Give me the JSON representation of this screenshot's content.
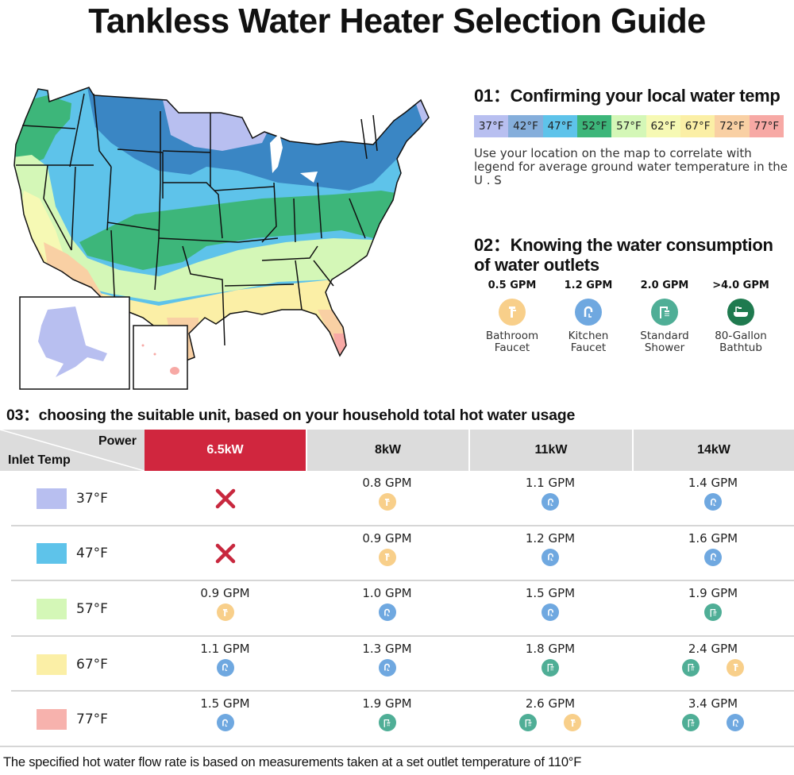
{
  "title": "Tankless Water Heater Selection Guide",
  "colors": {
    "accent_red": "#d0263e",
    "header_gray": "#dcdcdc",
    "icon_bathroom": "#f8cf8a",
    "icon_kitchen": "#6fa8e0",
    "icon_shower": "#4fae96",
    "icon_bathtub": "#1f7a4f"
  },
  "section1": {
    "heading": "01：Confirming your local water temp",
    "legend": [
      {
        "label": "37°F",
        "color": "#b8bff0"
      },
      {
        "label": "42°F",
        "color": "#85aedb"
      },
      {
        "label": "47°F",
        "color": "#5ec3ea"
      },
      {
        "label": "52°F",
        "color": "#3db67a"
      },
      {
        "label": "57°F",
        "color": "#d4f7b7"
      },
      {
        "label": "62°F",
        "color": "#f6f9b4"
      },
      {
        "label": "67°F",
        "color": "#fbefa6"
      },
      {
        "label": "72°F",
        "color": "#f9d0a4"
      },
      {
        "label": "77°F",
        "color": "#f7a9a5"
      }
    ],
    "description": "Use your location on the map to correlate with legend for average ground water temperature in the U . S"
  },
  "section2": {
    "heading": "02：Knowing the water consumption of water outlets",
    "outlets": [
      {
        "gpm": "0.5 GPM",
        "label": "Bathroom Faucet",
        "icon": "bathroom-faucet-icon"
      },
      {
        "gpm": "1.2 GPM",
        "label": "Kitchen Faucet",
        "icon": "kitchen-faucet-icon"
      },
      {
        "gpm": "2.0 GPM",
        "label": "Standard Shower",
        "icon": "shower-icon"
      },
      {
        "gpm": ">4.0 GPM",
        "label": "80-Gallon Bathtub",
        "icon": "bathtub-icon"
      }
    ]
  },
  "section3": {
    "heading": "03：choosing the suitable unit, based on your household total hot water usage",
    "corner_power": "Power",
    "corner_inlet": "Inlet Temp",
    "columns": [
      "6.5kW",
      "8kW",
      "11kW",
      "14kW"
    ],
    "rows": [
      {
        "temp": "37°F",
        "color": "#b8bff0",
        "cells": [
          {
            "value": null,
            "na": true,
            "icons": []
          },
          {
            "value": "0.8 GPM",
            "icons": [
              "bathroom"
            ]
          },
          {
            "value": "1.1 GPM",
            "icons": [
              "kitchen"
            ]
          },
          {
            "value": "1.4 GPM",
            "icons": [
              "kitchen"
            ]
          }
        ]
      },
      {
        "temp": "47°F",
        "color": "#5ec3ea",
        "cells": [
          {
            "value": null,
            "na": true,
            "icons": []
          },
          {
            "value": "0.9 GPM",
            "icons": [
              "bathroom"
            ]
          },
          {
            "value": "1.2 GPM",
            "icons": [
              "kitchen"
            ]
          },
          {
            "value": "1.6 GPM",
            "icons": [
              "kitchen"
            ]
          }
        ]
      },
      {
        "temp": "57°F",
        "color": "#d4f7b7",
        "cells": [
          {
            "value": "0.9 GPM",
            "icons": [
              "bathroom"
            ]
          },
          {
            "value": "1.0 GPM",
            "icons": [
              "kitchen"
            ]
          },
          {
            "value": "1.5 GPM",
            "icons": [
              "kitchen"
            ]
          },
          {
            "value": "1.9 GPM",
            "icons": [
              "shower"
            ]
          }
        ]
      },
      {
        "temp": "67°F",
        "color": "#fbefa6",
        "cells": [
          {
            "value": "1.1 GPM",
            "icons": [
              "kitchen"
            ]
          },
          {
            "value": "1.3 GPM",
            "icons": [
              "kitchen"
            ]
          },
          {
            "value": "1.8 GPM",
            "icons": [
              "shower"
            ]
          },
          {
            "value": "2.4 GPM",
            "icons": [
              "shower",
              "bathroom"
            ]
          }
        ]
      },
      {
        "temp": "77°F",
        "color": "#f7b2ad",
        "cells": [
          {
            "value": "1.5 GPM",
            "icons": [
              "kitchen"
            ]
          },
          {
            "value": "1.9 GPM",
            "icons": [
              "shower"
            ]
          },
          {
            "value": "2.6 GPM",
            "icons": [
              "shower",
              "bathroom"
            ]
          },
          {
            "value": "3.4 GPM",
            "icons": [
              "shower",
              "kitchen"
            ]
          }
        ]
      }
    ]
  },
  "footnote": "The specified hot water flow rate is based on measurements taken at a set outlet temperature of 110°F"
}
